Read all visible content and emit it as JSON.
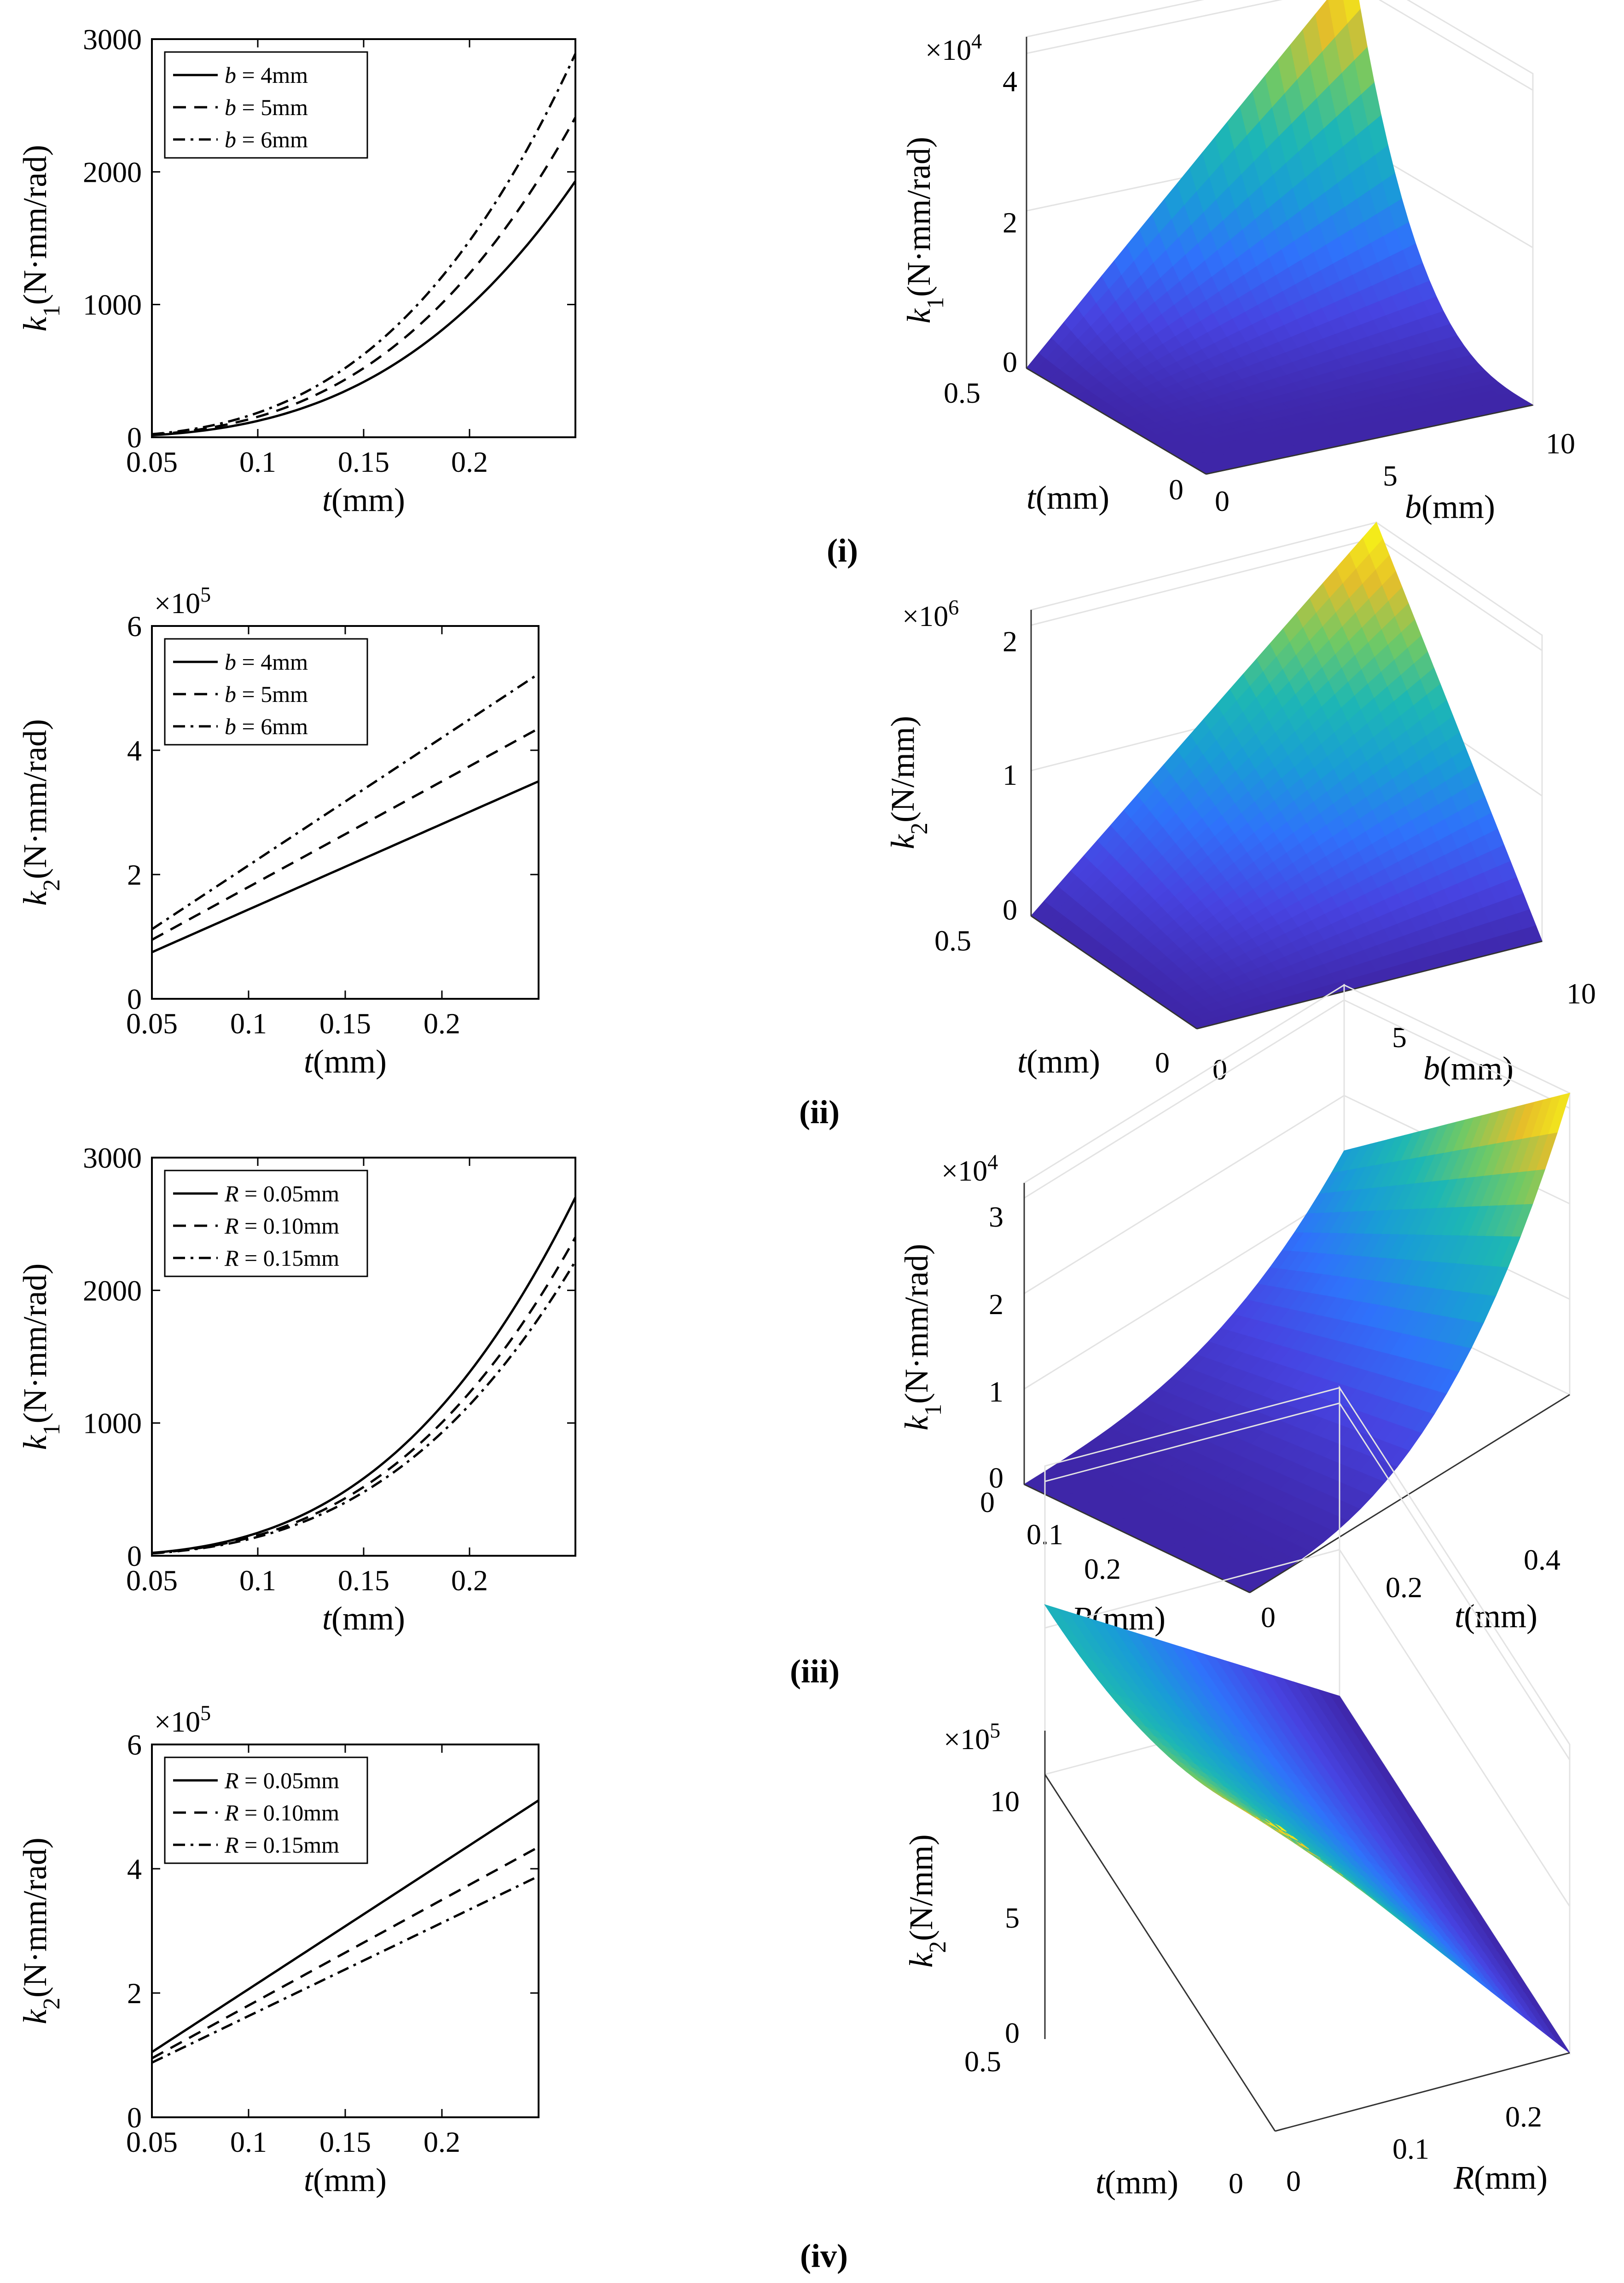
{
  "chart_data": [
    {
      "id": "p1",
      "type": "line",
      "xlabel_var": "t",
      "xlabel_unit": "(mm)",
      "ylabel_var": "k",
      "ylabel_sub": "1",
      "ylabel_unit": "(N·mm/rad)",
      "xlim": [
        0.05,
        0.25
      ],
      "ylim": [
        0,
        3000
      ],
      "xticks": [
        "0.05",
        "0.1",
        "0.15",
        "0.2"
      ],
      "yticks": [
        "0",
        "1000",
        "2000",
        "3000"
      ],
      "multiplier_base": "",
      "multiplier_exp": "",
      "legend": "top-left",
      "series": [
        {
          "var": "b",
          "name": " = 4mm",
          "dash": "solid",
          "x": [
            0.05,
            0.25
          ],
          "end": 1930
        },
        {
          "var": "b",
          "name": " = 5mm",
          "dash": "dashed",
          "x": [
            0.05,
            0.25
          ],
          "end": 2410
        },
        {
          "var": "b",
          "name": " = 6mm",
          "dash": "dashdot",
          "x": [
            0.05,
            0.25
          ],
          "end": 2890
        }
      ],
      "curve": "cubic"
    },
    {
      "id": "p2",
      "type": "line",
      "xlabel_var": "t",
      "xlabel_unit": "(mm)",
      "ylabel_var": "k",
      "ylabel_sub": "2",
      "ylabel_unit": "(N·mm/rad)",
      "xlim": [
        0.05,
        0.25
      ],
      "ylim": [
        0,
        6
      ],
      "xticks": [
        "0.05",
        "0.1",
        "0.15",
        "0.2"
      ],
      "yticks": [
        "0",
        "2",
        "4",
        "6"
      ],
      "multiplier_base": "×10",
      "multiplier_exp": "5",
      "legend": "top-left",
      "series": [
        {
          "var": "b",
          "name": " = 4mm",
          "dash": "solid",
          "y": [
            0.75,
            3.5
          ]
        },
        {
          "var": "b",
          "name": " = 5mm",
          "dash": "dashed",
          "y": [
            0.95,
            4.35
          ]
        },
        {
          "var": "b",
          "name": " = 6mm",
          "dash": "dashdot",
          "y": [
            1.12,
            5.23
          ]
        }
      ],
      "curve": "linear"
    },
    {
      "id": "p3",
      "type": "line",
      "xlabel_var": "t",
      "xlabel_unit": "(mm)",
      "ylabel_var": "k",
      "ylabel_sub": "1",
      "ylabel_unit": "(N·mm/rad)",
      "xlim": [
        0.05,
        0.25
      ],
      "ylim": [
        0,
        3000
      ],
      "xticks": [
        "0.05",
        "0.1",
        "0.15",
        "0.2"
      ],
      "yticks": [
        "0",
        "1000",
        "2000",
        "3000"
      ],
      "multiplier_base": "",
      "multiplier_exp": "",
      "legend": "top-left",
      "series": [
        {
          "var": "R",
          "name": " = 0.05mm",
          "dash": "solid",
          "x": [
            0.05,
            0.25
          ],
          "end": 2700
        },
        {
          "var": "R",
          "name": " = 0.10mm",
          "dash": "dashed",
          "x": [
            0.05,
            0.25
          ],
          "end": 2400
        },
        {
          "var": "R",
          "name": " = 0.15mm",
          "dash": "dashdot",
          "x": [
            0.05,
            0.25
          ],
          "end": 2220
        }
      ],
      "curve": "cubic"
    },
    {
      "id": "p4",
      "type": "line",
      "xlabel_var": "t",
      "xlabel_unit": "(mm)",
      "ylabel_var": "k",
      "ylabel_sub": "2",
      "ylabel_unit": "(N·mm/rad)",
      "xlim": [
        0.05,
        0.25
      ],
      "ylim": [
        0,
        6
      ],
      "xticks": [
        "0.05",
        "0.1",
        "0.15",
        "0.2"
      ],
      "yticks": [
        "0",
        "2",
        "4",
        "6"
      ],
      "multiplier_base": "×10",
      "multiplier_exp": "5",
      "legend": "top-left",
      "series": [
        {
          "var": "R",
          "name": " = 0.05mm",
          "dash": "solid",
          "y": [
            1.05,
            5.1
          ]
        },
        {
          "var": "R",
          "name": " = 0.10mm",
          "dash": "dashed",
          "y": [
            0.95,
            4.35
          ]
        },
        {
          "var": "R",
          "name": " = 0.15mm",
          "dash": "dashdot",
          "y": [
            0.88,
            3.88
          ]
        }
      ],
      "curve": "linear"
    },
    {
      "id": "s1",
      "type": "surface",
      "panel_label": "(i)",
      "zlabel_var": "k",
      "zlabel_sub": "1",
      "zlabel_unit": "(N·mm/rad)",
      "multiplier_base": "×10",
      "multiplier_exp": "4",
      "zticks": [
        "0",
        "2",
        "4"
      ],
      "zlim": [
        0,
        4.5
      ],
      "zmax_value": 4.2,
      "left_axis_var": "t",
      "left_axis_unit": "(mm)",
      "left_ticks": [
        "0",
        "0.5"
      ],
      "right_axis_var": "b",
      "right_axis_unit": "(mm)",
      "right_ticks": [
        "0",
        "5",
        "10"
      ],
      "colormap": [
        "#3e26a8",
        "#4743e1",
        "#2f72fb",
        "#199dd6",
        "#1db7b4",
        "#6fc966",
        "#e6be2a",
        "#f9fb14"
      ]
    },
    {
      "id": "s2",
      "type": "surface",
      "panel_label": "(ii)",
      "zlabel_var": "k",
      "zlabel_sub": "2",
      "zlabel_unit": "(N/mm)",
      "multiplier_base": "×10",
      "multiplier_exp": "6",
      "zticks": [
        "0",
        "1",
        "2"
      ],
      "zlim": [
        0,
        2.2
      ],
      "zmax_value": 2.1,
      "left_axis_var": "t",
      "left_axis_unit": "(mm)",
      "left_ticks": [
        "0",
        "0.5"
      ],
      "right_axis_var": "b",
      "right_axis_unit": "(mm)",
      "right_ticks": [
        "0",
        "5",
        "10"
      ],
      "colormap": [
        "#3e26a8",
        "#4743e1",
        "#2f72fb",
        "#199dd6",
        "#1db7b4",
        "#6fc966",
        "#e6be2a",
        "#f9fb14"
      ]
    },
    {
      "id": "s3",
      "type": "surface",
      "panel_label": "(iii)",
      "zlabel_var": "k",
      "zlabel_sub": "1",
      "zlabel_unit": "(N·mm/rad)",
      "multiplier_base": "×10",
      "multiplier_exp": "4",
      "zticks": [
        "0",
        "1",
        "2",
        "3"
      ],
      "zlim": [
        0,
        3.3
      ],
      "zmax_value": 3.2,
      "left_axis_var": "R",
      "left_axis_unit": "(mm)",
      "left_ticks": [
        "0",
        "0.1",
        "0.2"
      ],
      "right_axis_var": "t",
      "right_axis_unit": "(mm)",
      "right_ticks": [
        "0",
        "0.2",
        "0.4"
      ],
      "colormap": [
        "#3e26a8",
        "#4743e1",
        "#2f72fb",
        "#199dd6",
        "#1db7b4",
        "#6fc966",
        "#e6be2a",
        "#f9fb14"
      ]
    },
    {
      "id": "s4",
      "type": "surface",
      "panel_label": "(iv)",
      "zlabel_var": "k",
      "zlabel_sub": "2",
      "zlabel_unit": "(N/mm)",
      "multiplier_base": "×10",
      "multiplier_exp": "5",
      "zticks": [
        "0",
        "5",
        "10"
      ],
      "zlim": [
        0,
        12
      ],
      "zmax_value": 11.5,
      "left_axis_var": "t",
      "left_axis_unit": "(mm)",
      "left_ticks": [
        "0",
        "0.5"
      ],
      "right_axis_var": "R",
      "right_axis_unit": "(mm)",
      "right_ticks": [
        "0",
        "0.1",
        "0.2"
      ],
      "colormap": [
        "#3e26a8",
        "#4743e1",
        "#2f72fb",
        "#199dd6",
        "#1db7b4",
        "#6fc966",
        "#e6be2a",
        "#f9fb14"
      ]
    }
  ]
}
